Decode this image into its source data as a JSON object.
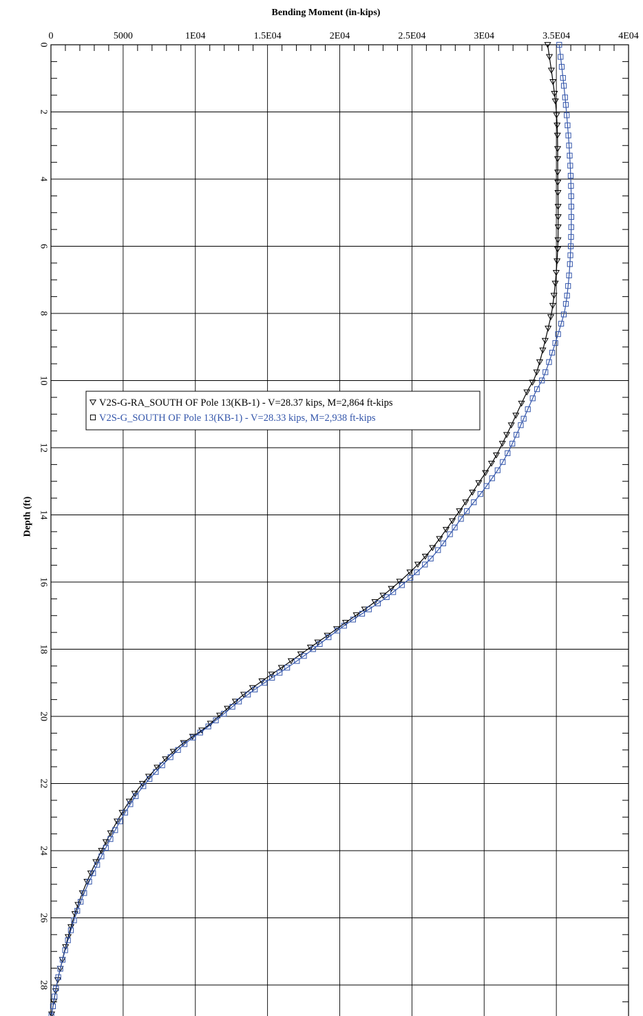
{
  "chart_data": {
    "type": "line",
    "xlabel": "Bending Moment (in-kips)",
    "ylabel": "Depth (ft)",
    "x_axis_position": "top",
    "y_axis_inverted": true,
    "xlim": [
      0,
      40000
    ],
    "ylim": [
      0,
      29
    ],
    "x_ticks": [
      {
        "value": 0,
        "label": "0"
      },
      {
        "value": 5000,
        "label": "5000"
      },
      {
        "value": 10000,
        "label": "1E04"
      },
      {
        "value": 15000,
        "label": "1.5E04"
      },
      {
        "value": 20000,
        "label": "2E04"
      },
      {
        "value": 25000,
        "label": "2.5E04"
      },
      {
        "value": 30000,
        "label": "3E04"
      },
      {
        "value": 35000,
        "label": "3.5E04"
      },
      {
        "value": 40000,
        "label": "4E04"
      }
    ],
    "y_ticks": [
      {
        "value": 0,
        "label": "0"
      },
      {
        "value": 2,
        "label": "2"
      },
      {
        "value": 4,
        "label": "4"
      },
      {
        "value": 6,
        "label": "6"
      },
      {
        "value": 8,
        "label": "8"
      },
      {
        "value": 10,
        "label": "10"
      },
      {
        "value": 12,
        "label": "12"
      },
      {
        "value": 14,
        "label": "14"
      },
      {
        "value": 16,
        "label": "16"
      },
      {
        "value": 18,
        "label": "18"
      },
      {
        "value": 20,
        "label": "20"
      },
      {
        "value": 22,
        "label": "22"
      },
      {
        "value": 24,
        "label": "24"
      },
      {
        "value": 26,
        "label": "26"
      },
      {
        "value": 28,
        "label": "28"
      }
    ],
    "grid": true,
    "legend_position": "center-left",
    "series": [
      {
        "name": "V2S-G-RA_SOUTH OF Pole 13(KB-1) - V=28.37 kips, M=2,864 ft-kips",
        "color": "#000000",
        "marker": "triangle-down",
        "x": [
          34400,
          35000,
          35100,
          35100,
          34800,
          34400,
          33600,
          32900,
          31000,
          29700,
          28100,
          25800,
          23000,
          20100,
          16800,
          13500,
          10800,
          8600,
          5800,
          3500,
          1800,
          600,
          0
        ],
        "y": [
          0,
          2,
          4,
          6,
          7.6,
          8.5,
          9.8,
          10.4,
          12.1,
          13.0,
          14.0,
          15.3,
          16.4,
          17.3,
          18.3,
          19.3,
          20.3,
          21.0,
          22.3,
          24.0,
          25.7,
          27.6,
          29
        ]
      },
      {
        "name": "V2S-G_SOUTH OF Pole 13(KB-1) - V=28.33 kips, M=2,938 ft-kips",
        "color": "#3355aa",
        "marker": "square",
        "x": [
          35200,
          35700,
          36000,
          36000,
          35700,
          35200,
          34200,
          33500,
          31700,
          30400,
          28600,
          26300,
          23400,
          20300,
          17200,
          13800,
          10900,
          8800,
          6000,
          3700,
          1900,
          600,
          0
        ],
        "y": [
          0,
          2,
          4,
          6,
          7.6,
          8.5,
          9.8,
          10.4,
          12.1,
          13.0,
          14.0,
          15.3,
          16.4,
          17.3,
          18.3,
          19.3,
          20.3,
          21.0,
          22.3,
          24.0,
          25.7,
          27.6,
          29
        ]
      }
    ]
  }
}
